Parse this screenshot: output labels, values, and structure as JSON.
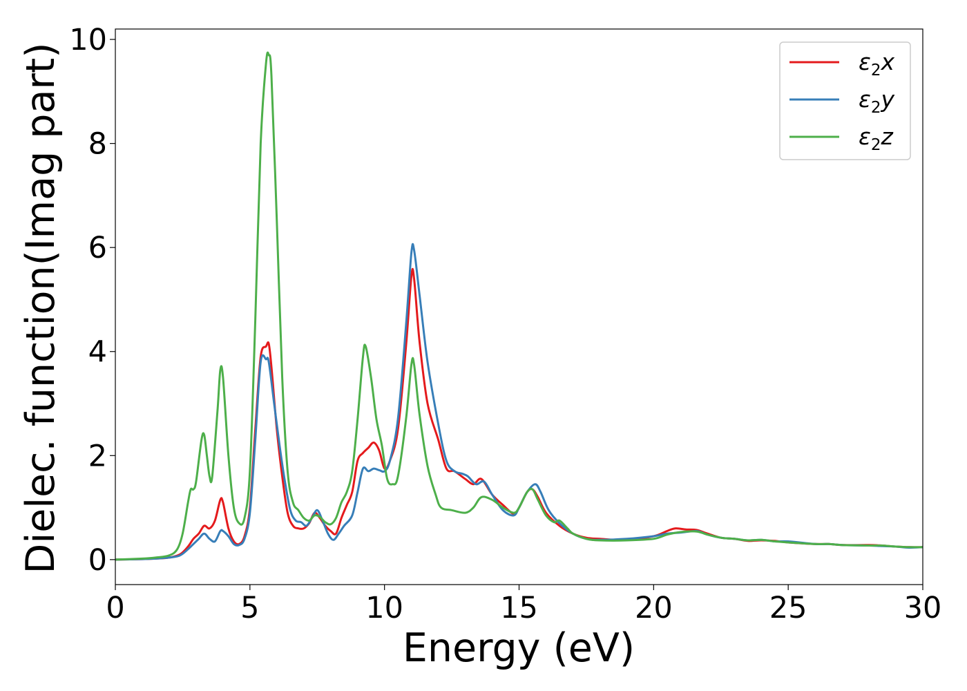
{
  "chart_data": {
    "type": "line",
    "xlabel": "Energy (eV)",
    "ylabel": "Dielec. function(Imag part)",
    "xlim": [
      0,
      30
    ],
    "ylim": [
      -0.48,
      10.2
    ],
    "xticks": [
      0,
      5,
      10,
      15,
      20,
      25,
      30
    ],
    "yticks": [
      0,
      2,
      4,
      6,
      8,
      10
    ],
    "grid": false,
    "legend_position": "top-right",
    "series": [
      {
        "name": "ε2x",
        "legend_main": "ε",
        "legend_sub": "2",
        "legend_suffix": "x",
        "color": "#e41a1c",
        "points": [
          [
            0,
            0.0
          ],
          [
            1,
            0.01
          ],
          [
            1.5,
            0.02
          ],
          [
            2,
            0.04
          ],
          [
            2.4,
            0.1
          ],
          [
            2.7,
            0.25
          ],
          [
            2.9,
            0.4
          ],
          [
            3.1,
            0.5
          ],
          [
            3.3,
            0.65
          ],
          [
            3.5,
            0.6
          ],
          [
            3.7,
            0.75
          ],
          [
            3.9,
            1.15
          ],
          [
            4.0,
            1.1
          ],
          [
            4.2,
            0.6
          ],
          [
            4.4,
            0.35
          ],
          [
            4.6,
            0.3
          ],
          [
            4.8,
            0.45
          ],
          [
            5.0,
            1.0
          ],
          [
            5.2,
            2.5
          ],
          [
            5.4,
            3.9
          ],
          [
            5.6,
            4.1
          ],
          [
            5.7,
            4.15
          ],
          [
            5.8,
            3.7
          ],
          [
            6.0,
            2.5
          ],
          [
            6.2,
            1.6
          ],
          [
            6.4,
            0.9
          ],
          [
            6.6,
            0.65
          ],
          [
            6.8,
            0.6
          ],
          [
            7.0,
            0.6
          ],
          [
            7.2,
            0.7
          ],
          [
            7.4,
            0.9
          ],
          [
            7.6,
            0.8
          ],
          [
            7.8,
            0.65
          ],
          [
            8.0,
            0.55
          ],
          [
            8.2,
            0.5
          ],
          [
            8.4,
            0.8
          ],
          [
            8.6,
            1.05
          ],
          [
            8.8,
            1.3
          ],
          [
            9.0,
            1.9
          ],
          [
            9.2,
            2.05
          ],
          [
            9.4,
            2.15
          ],
          [
            9.6,
            2.25
          ],
          [
            9.8,
            2.1
          ],
          [
            10.0,
            1.75
          ],
          [
            10.2,
            1.9
          ],
          [
            10.5,
            2.5
          ],
          [
            10.8,
            4.1
          ],
          [
            11.0,
            5.45
          ],
          [
            11.1,
            5.4
          ],
          [
            11.3,
            4.2
          ],
          [
            11.6,
            3.0
          ],
          [
            12.0,
            2.3
          ],
          [
            12.3,
            1.75
          ],
          [
            12.6,
            1.7
          ],
          [
            13.0,
            1.55
          ],
          [
            13.3,
            1.45
          ],
          [
            13.6,
            1.55
          ],
          [
            14.0,
            1.25
          ],
          [
            14.4,
            1.05
          ],
          [
            14.8,
            0.88
          ],
          [
            15.0,
            1.0
          ],
          [
            15.3,
            1.3
          ],
          [
            15.5,
            1.35
          ],
          [
            15.7,
            1.2
          ],
          [
            16.0,
            0.9
          ],
          [
            16.5,
            0.65
          ],
          [
            17.0,
            0.5
          ],
          [
            17.5,
            0.42
          ],
          [
            18.0,
            0.4
          ],
          [
            19.0,
            0.38
          ],
          [
            20.0,
            0.45
          ],
          [
            20.5,
            0.55
          ],
          [
            20.8,
            0.6
          ],
          [
            21.2,
            0.58
          ],
          [
            21.6,
            0.57
          ],
          [
            22.0,
            0.5
          ],
          [
            22.5,
            0.42
          ],
          [
            23.0,
            0.4
          ],
          [
            23.5,
            0.36
          ],
          [
            24.0,
            0.37
          ],
          [
            24.5,
            0.36
          ],
          [
            25.0,
            0.33
          ],
          [
            26.0,
            0.3
          ],
          [
            26.5,
            0.3
          ],
          [
            27.0,
            0.28
          ],
          [
            28.0,
            0.28
          ],
          [
            28.5,
            0.27
          ],
          [
            29.0,
            0.25
          ],
          [
            29.5,
            0.24
          ],
          [
            30.0,
            0.24
          ]
        ]
      },
      {
        "name": "ε2y",
        "legend_main": "ε",
        "legend_sub": "2",
        "legend_suffix": "y",
        "color": "#377eb8",
        "points": [
          [
            0,
            0.0
          ],
          [
            1,
            0.01
          ],
          [
            1.5,
            0.02
          ],
          [
            2,
            0.04
          ],
          [
            2.4,
            0.08
          ],
          [
            2.7,
            0.2
          ],
          [
            2.9,
            0.3
          ],
          [
            3.1,
            0.4
          ],
          [
            3.3,
            0.5
          ],
          [
            3.5,
            0.4
          ],
          [
            3.7,
            0.35
          ],
          [
            3.9,
            0.55
          ],
          [
            4.0,
            0.55
          ],
          [
            4.2,
            0.45
          ],
          [
            4.4,
            0.3
          ],
          [
            4.6,
            0.28
          ],
          [
            4.8,
            0.4
          ],
          [
            5.0,
            0.9
          ],
          [
            5.2,
            2.3
          ],
          [
            5.4,
            3.8
          ],
          [
            5.6,
            3.85
          ],
          [
            5.7,
            3.8
          ],
          [
            5.9,
            3.0
          ],
          [
            6.1,
            2.2
          ],
          [
            6.3,
            1.5
          ],
          [
            6.5,
            0.95
          ],
          [
            6.7,
            0.75
          ],
          [
            6.9,
            0.72
          ],
          [
            7.1,
            0.65
          ],
          [
            7.3,
            0.8
          ],
          [
            7.5,
            0.95
          ],
          [
            7.7,
            0.75
          ],
          [
            7.9,
            0.5
          ],
          [
            8.1,
            0.38
          ],
          [
            8.3,
            0.5
          ],
          [
            8.5,
            0.65
          ],
          [
            8.8,
            0.85
          ],
          [
            9.0,
            1.3
          ],
          [
            9.2,
            1.75
          ],
          [
            9.4,
            1.7
          ],
          [
            9.6,
            1.75
          ],
          [
            9.8,
            1.72
          ],
          [
            10.0,
            1.7
          ],
          [
            10.2,
            1.9
          ],
          [
            10.5,
            2.7
          ],
          [
            10.8,
            4.5
          ],
          [
            11.0,
            5.9
          ],
          [
            11.1,
            5.95
          ],
          [
            11.3,
            5.1
          ],
          [
            11.6,
            3.8
          ],
          [
            12.0,
            2.6
          ],
          [
            12.3,
            1.9
          ],
          [
            12.6,
            1.7
          ],
          [
            12.9,
            1.65
          ],
          [
            13.1,
            1.6
          ],
          [
            13.4,
            1.45
          ],
          [
            13.7,
            1.5
          ],
          [
            14.0,
            1.25
          ],
          [
            14.4,
            0.95
          ],
          [
            14.8,
            0.85
          ],
          [
            15.0,
            1.0
          ],
          [
            15.3,
            1.3
          ],
          [
            15.6,
            1.45
          ],
          [
            15.8,
            1.3
          ],
          [
            16.1,
            0.95
          ],
          [
            16.5,
            0.7
          ],
          [
            17.0,
            0.5
          ],
          [
            17.5,
            0.4
          ],
          [
            18.0,
            0.38
          ],
          [
            19.0,
            0.4
          ],
          [
            20.0,
            0.45
          ],
          [
            20.5,
            0.5
          ],
          [
            21.0,
            0.52
          ],
          [
            21.6,
            0.55
          ],
          [
            22.0,
            0.48
          ],
          [
            22.5,
            0.42
          ],
          [
            23.0,
            0.4
          ],
          [
            23.5,
            0.37
          ],
          [
            24.0,
            0.38
          ],
          [
            24.5,
            0.35
          ],
          [
            25.0,
            0.35
          ],
          [
            26.0,
            0.3
          ],
          [
            26.5,
            0.3
          ],
          [
            27.0,
            0.28
          ],
          [
            28.0,
            0.27
          ],
          [
            28.5,
            0.26
          ],
          [
            29.0,
            0.25
          ],
          [
            29.5,
            0.23
          ],
          [
            30.0,
            0.24
          ]
        ]
      },
      {
        "name": "ε2z",
        "legend_main": "ε",
        "legend_sub": "2",
        "legend_suffix": "z",
        "color": "#4daf4a",
        "points": [
          [
            0,
            0.0
          ],
          [
            1,
            0.02
          ],
          [
            1.5,
            0.04
          ],
          [
            2,
            0.08
          ],
          [
            2.3,
            0.2
          ],
          [
            2.5,
            0.5
          ],
          [
            2.7,
            1.1
          ],
          [
            2.8,
            1.35
          ],
          [
            2.9,
            1.35
          ],
          [
            3.0,
            1.5
          ],
          [
            3.2,
            2.3
          ],
          [
            3.3,
            2.4
          ],
          [
            3.4,
            2.0
          ],
          [
            3.5,
            1.6
          ],
          [
            3.6,
            1.6
          ],
          [
            3.8,
            2.9
          ],
          [
            3.9,
            3.65
          ],
          [
            4.0,
            3.5
          ],
          [
            4.2,
            2.0
          ],
          [
            4.4,
            1.0
          ],
          [
            4.6,
            0.7
          ],
          [
            4.8,
            0.8
          ],
          [
            5.0,
            1.7
          ],
          [
            5.2,
            4.6
          ],
          [
            5.4,
            8.0
          ],
          [
            5.6,
            9.55
          ],
          [
            5.7,
            9.7
          ],
          [
            5.8,
            9.3
          ],
          [
            6.0,
            6.5
          ],
          [
            6.2,
            3.5
          ],
          [
            6.4,
            1.7
          ],
          [
            6.6,
            1.1
          ],
          [
            6.8,
            0.95
          ],
          [
            7.0,
            0.8
          ],
          [
            7.2,
            0.75
          ],
          [
            7.4,
            0.85
          ],
          [
            7.6,
            0.82
          ],
          [
            7.8,
            0.72
          ],
          [
            8.0,
            0.68
          ],
          [
            8.2,
            0.8
          ],
          [
            8.4,
            1.1
          ],
          [
            8.6,
            1.3
          ],
          [
            8.8,
            1.7
          ],
          [
            9.0,
            2.7
          ],
          [
            9.2,
            3.9
          ],
          [
            9.3,
            4.1
          ],
          [
            9.5,
            3.5
          ],
          [
            9.7,
            2.7
          ],
          [
            9.9,
            2.2
          ],
          [
            10.1,
            1.55
          ],
          [
            10.3,
            1.45
          ],
          [
            10.5,
            1.6
          ],
          [
            10.8,
            2.7
          ],
          [
            11.0,
            3.75
          ],
          [
            11.1,
            3.75
          ],
          [
            11.3,
            2.8
          ],
          [
            11.6,
            1.8
          ],
          [
            11.9,
            1.25
          ],
          [
            12.1,
            1.0
          ],
          [
            12.5,
            0.95
          ],
          [
            13.0,
            0.9
          ],
          [
            13.3,
            1.0
          ],
          [
            13.6,
            1.2
          ],
          [
            14.0,
            1.15
          ],
          [
            14.4,
            1.0
          ],
          [
            14.8,
            0.9
          ],
          [
            15.0,
            1.0
          ],
          [
            15.3,
            1.3
          ],
          [
            15.5,
            1.35
          ],
          [
            15.7,
            1.15
          ],
          [
            16.0,
            0.85
          ],
          [
            16.3,
            0.72
          ],
          [
            16.5,
            0.75
          ],
          [
            16.8,
            0.6
          ],
          [
            17.0,
            0.5
          ],
          [
            17.5,
            0.4
          ],
          [
            18.0,
            0.37
          ],
          [
            19.0,
            0.37
          ],
          [
            20.0,
            0.4
          ],
          [
            20.5,
            0.48
          ],
          [
            21.0,
            0.53
          ],
          [
            21.6,
            0.54
          ],
          [
            22.0,
            0.48
          ],
          [
            22.5,
            0.42
          ],
          [
            23.0,
            0.4
          ],
          [
            23.5,
            0.37
          ],
          [
            24.0,
            0.38
          ],
          [
            24.5,
            0.35
          ],
          [
            25.0,
            0.33
          ],
          [
            26.0,
            0.3
          ],
          [
            26.5,
            0.3
          ],
          [
            27.0,
            0.28
          ],
          [
            28.0,
            0.27
          ],
          [
            28.5,
            0.27
          ],
          [
            29.0,
            0.25
          ],
          [
            29.5,
            0.24
          ],
          [
            30.0,
            0.24
          ]
        ]
      }
    ]
  }
}
